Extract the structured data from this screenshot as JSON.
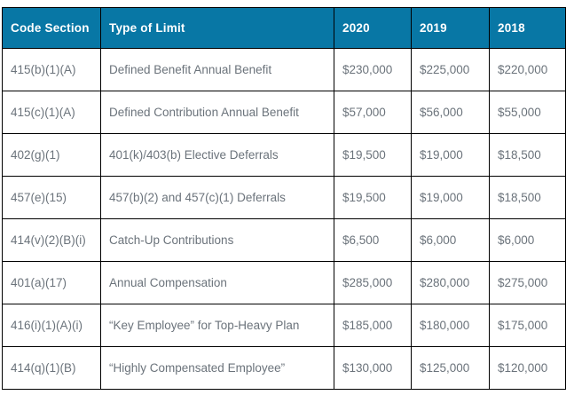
{
  "colors": {
    "header_bg": "#0877a5",
    "header_text": "#ffffff",
    "cell_text": "#6b737b",
    "border": "#000000"
  },
  "chart_data": {
    "type": "table",
    "title": "",
    "columns": [
      "Code Section",
      "Type of Limit",
      "2020",
      "2019",
      "2018"
    ],
    "rows": [
      [
        "415(b)(1)(A)",
        "Defined Benefit Annual Benefit",
        "$230,000",
        "$225,000",
        "$220,000"
      ],
      [
        "415(c)(1)(A)",
        "Defined Contribution Annual Benefit",
        "$57,000",
        "$56,000",
        "$55,000"
      ],
      [
        "402(g)(1)",
        "401(k)/403(b) Elective Deferrals",
        "$19,500",
        "$19,000",
        "$18,500"
      ],
      [
        "457(e)(15)",
        "457(b)(2) and 457(c)(1) Deferrals",
        "$19,500",
        "$19,000",
        "$18,500"
      ],
      [
        "414(v)(2)(B)(i)",
        "Catch-Up Contributions",
        "$6,500",
        "$6,000",
        "$6,000"
      ],
      [
        "401(a)(17)",
        "Annual Compensation",
        "$285,000",
        "$280,000",
        "$275,000"
      ],
      [
        "416(i)(1)(A)(i)",
        "“Key Employee” for Top-Heavy Plan",
        "$185,000",
        "$180,000",
        "$175,000"
      ],
      [
        "414(q)(1)(B)",
        "“Highly Compensated Employee”",
        "$130,000",
        "$125,000",
        "$120,000"
      ]
    ]
  }
}
